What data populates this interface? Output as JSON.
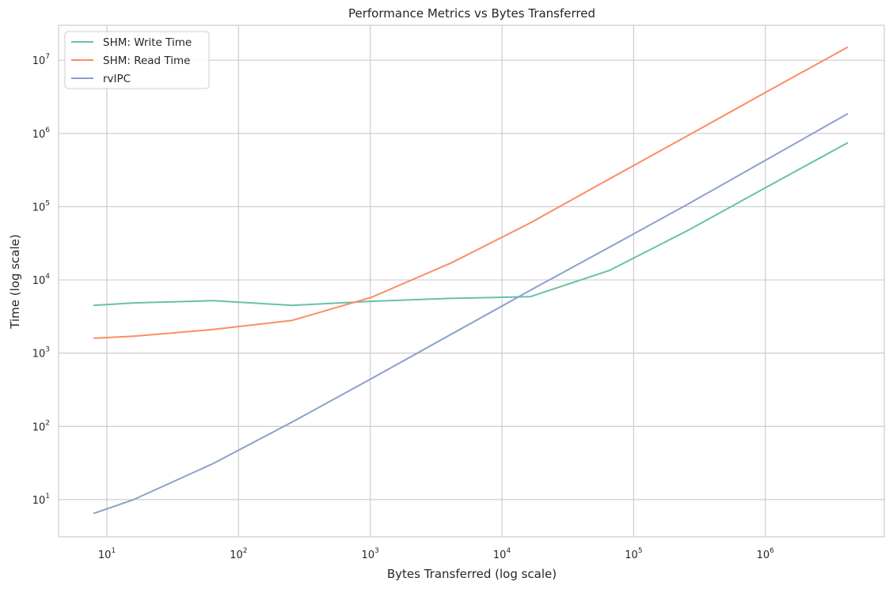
{
  "chart_data": {
    "type": "line",
    "title": "Performance Metrics vs Bytes Transferred",
    "xlabel": "Bytes Transferred (log scale)",
    "ylabel": "Time (log scale)",
    "xscale": "log",
    "yscale": "log",
    "xlim": [
      4.3,
      8000000
    ],
    "ylim": [
      3.1,
      30000000
    ],
    "xticks": [
      {
        "value": 10,
        "base": "10",
        "exp": "1"
      },
      {
        "value": 100,
        "base": "10",
        "exp": "2"
      },
      {
        "value": 1000,
        "base": "10",
        "exp": "3"
      },
      {
        "value": 10000,
        "base": "10",
        "exp": "4"
      },
      {
        "value": 100000,
        "base": "10",
        "exp": "5"
      },
      {
        "value": 1000000,
        "base": "10",
        "exp": "6"
      }
    ],
    "yticks": [
      {
        "value": 10,
        "base": "10",
        "exp": "1"
      },
      {
        "value": 100,
        "base": "10",
        "exp": "2"
      },
      {
        "value": 1000,
        "base": "10",
        "exp": "3"
      },
      {
        "value": 10000,
        "base": "10",
        "exp": "4"
      },
      {
        "value": 100000,
        "base": "10",
        "exp": "5"
      },
      {
        "value": 1000000,
        "base": "10",
        "exp": "6"
      },
      {
        "value": 10000000,
        "base": "10",
        "exp": "7"
      }
    ],
    "grid": true,
    "legend_position": "top-left",
    "x": [
      8,
      16,
      64,
      256,
      1024,
      4096,
      16384,
      65536,
      262144,
      1048576,
      4194304
    ],
    "series": [
      {
        "name": "SHM: Write Time",
        "color": "#66c2a5",
        "values": [
          4500,
          4850,
          5200,
          4500,
          5100,
          5600,
          5900,
          13500,
          48000,
          190000,
          740000
        ]
      },
      {
        "name": "SHM: Read Time",
        "color": "#fc8d62",
        "values": [
          1600,
          1700,
          2100,
          2800,
          5800,
          17000,
          60000,
          240000,
          950000,
          3800000,
          15000000
        ]
      },
      {
        "name": "rvIPC",
        "color": "#8da0cb",
        "values": [
          6.5,
          10,
          31,
          115,
          450,
          1800,
          7200,
          28000,
          110000,
          450000,
          1850000
        ]
      }
    ]
  }
}
